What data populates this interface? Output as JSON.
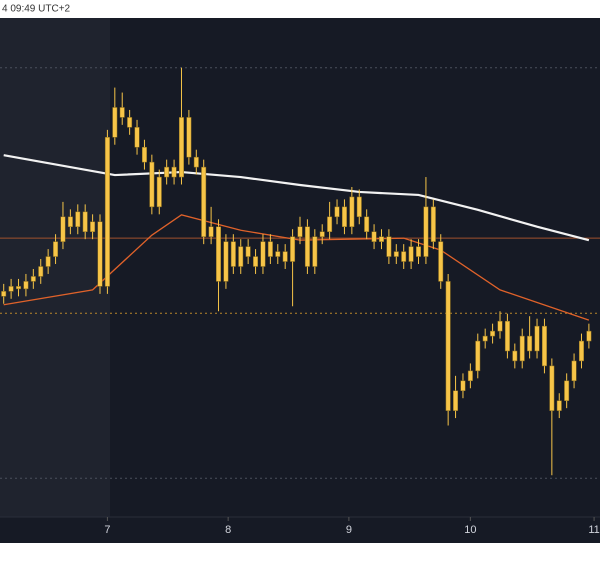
{
  "chart_data": {
    "type": "candlestick",
    "header": "4 09:49 UTC+2",
    "ylim": [
      0,
      100
    ],
    "xlim": [
      -0.5,
      80.5
    ],
    "xticks": [
      {
        "value": 14,
        "label": "7"
      },
      {
        "value": 30.3,
        "label": "8"
      },
      {
        "value": 46.6,
        "label": "9"
      },
      {
        "value": 63,
        "label": "10"
      },
      {
        "value": 79.7,
        "label": "11"
      }
    ],
    "color": "#f7c548",
    "open": [
      44,
      45,
      46,
      45.5,
      47,
      48,
      50,
      52,
      55,
      60,
      58,
      61,
      57,
      59,
      46,
      76,
      82,
      80,
      78,
      74,
      71,
      62,
      68,
      70,
      68,
      80,
      72,
      70,
      56,
      58,
      47,
      55,
      50,
      54,
      52,
      50,
      55,
      52,
      53,
      51,
      56,
      58,
      50,
      56,
      57,
      60,
      62,
      58,
      64,
      60,
      57,
      55,
      56,
      52,
      53,
      51,
      54,
      52,
      62,
      55,
      47,
      21,
      25,
      27,
      29,
      35,
      36,
      37,
      39,
      33,
      31,
      36,
      33,
      38,
      30,
      21,
      23,
      27,
      31,
      35
    ],
    "high": [
      46.5,
      47.5,
      47.5,
      48.5,
      49.5,
      51.5,
      53.5,
      56.5,
      63,
      61.5,
      62.5,
      62.5,
      60.5,
      60.5,
      77.5,
      86,
      85,
      81.5,
      79.5,
      75.5,
      72.5,
      69.5,
      71.5,
      71.5,
      90,
      81.5,
      73.5,
      71.5,
      62,
      59.5,
      56.5,
      56.5,
      55.5,
      55.5,
      53.5,
      56.5,
      56.5,
      54.5,
      54.5,
      57.5,
      60,
      59.5,
      57.5,
      58.5,
      63,
      63.5,
      63.5,
      66,
      65.5,
      61.5,
      58.5,
      57.5,
      57.5,
      54.5,
      54.5,
      55.5,
      55.5,
      68,
      63.5,
      56.5,
      48.5,
      28,
      28.5,
      30.5,
      36.5,
      37.5,
      38.5,
      41,
      40.5,
      34.5,
      37.5,
      40,
      39.5,
      39.5,
      31.5,
      24.5,
      28.5,
      32.5,
      36.5,
      38.5
    ],
    "low": [
      42.5,
      43.5,
      44,
      44,
      45.5,
      46.5,
      48.5,
      50.5,
      53.5,
      56.5,
      56.5,
      55.5,
      55.5,
      44.5,
      44.5,
      74.5,
      78.5,
      76.5,
      72.5,
      69.5,
      60.5,
      60.5,
      66.5,
      66.5,
      66.5,
      70.5,
      68.5,
      54.5,
      54.5,
      41,
      45.5,
      48.5,
      48.5,
      50.5,
      48.5,
      48.5,
      50.5,
      50.5,
      49.5,
      42,
      54.5,
      48.5,
      48.5,
      54.5,
      55.5,
      58.5,
      56.5,
      56.5,
      58.5,
      55.5,
      53.5,
      53.5,
      50.5,
      50.5,
      49.5,
      49.5,
      50.5,
      50.5,
      53.5,
      45.5,
      18,
      19.5,
      23.5,
      25.5,
      27.5,
      33.5,
      34.5,
      35.5,
      31.5,
      29.5,
      29.5,
      31.5,
      31.5,
      28.5,
      8,
      19.5,
      21.5,
      25.5,
      29.5,
      33.5
    ],
    "close": [
      45,
      46,
      45.5,
      47,
      48,
      50,
      52,
      55,
      60,
      58,
      61,
      57,
      59,
      46,
      76,
      82,
      80,
      78,
      74,
      71,
      62,
      68,
      70,
      68,
      80,
      72,
      70,
      56,
      58,
      47,
      55,
      50,
      54,
      52,
      50,
      55,
      52,
      53,
      51,
      56,
      58,
      50,
      56,
      57,
      60,
      62,
      58,
      64,
      60,
      57,
      55,
      56,
      52,
      53,
      51,
      54,
      52,
      62,
      55,
      47,
      21,
      25,
      27,
      29,
      35,
      36,
      37,
      39,
      33,
      31,
      36,
      33,
      38,
      30,
      21,
      23,
      27,
      31,
      35,
      37
    ],
    "lines": [
      {
        "color": "#f2f2f2",
        "x": [
          0,
          15,
          24,
          32,
          40,
          48,
          56,
          64,
          72,
          79
        ],
        "values": [
          72.4,
          68.4,
          69,
          68,
          66.4,
          65,
          64.4,
          61.4,
          58,
          55.3
        ]
      },
      {
        "color": "#e0622a",
        "x": [
          0,
          12,
          20,
          24,
          32,
          40,
          54,
          59,
          67,
          79
        ],
        "values": [
          42.3,
          45.3,
          56.3,
          60.4,
          57.3,
          55.3,
          55.7,
          53.3,
          45.3,
          39.2
        ]
      }
    ],
    "levels": [
      {
        "value": 90,
        "color": "#4a4f5c",
        "dash": true
      },
      {
        "value": 55.7,
        "color": "#a0522d",
        "dash": false
      },
      {
        "value": 40.6,
        "color": "#b8862b",
        "dash": true
      },
      {
        "value": 7.4,
        "color": "#4a4f5c",
        "dash": true
      }
    ]
  }
}
